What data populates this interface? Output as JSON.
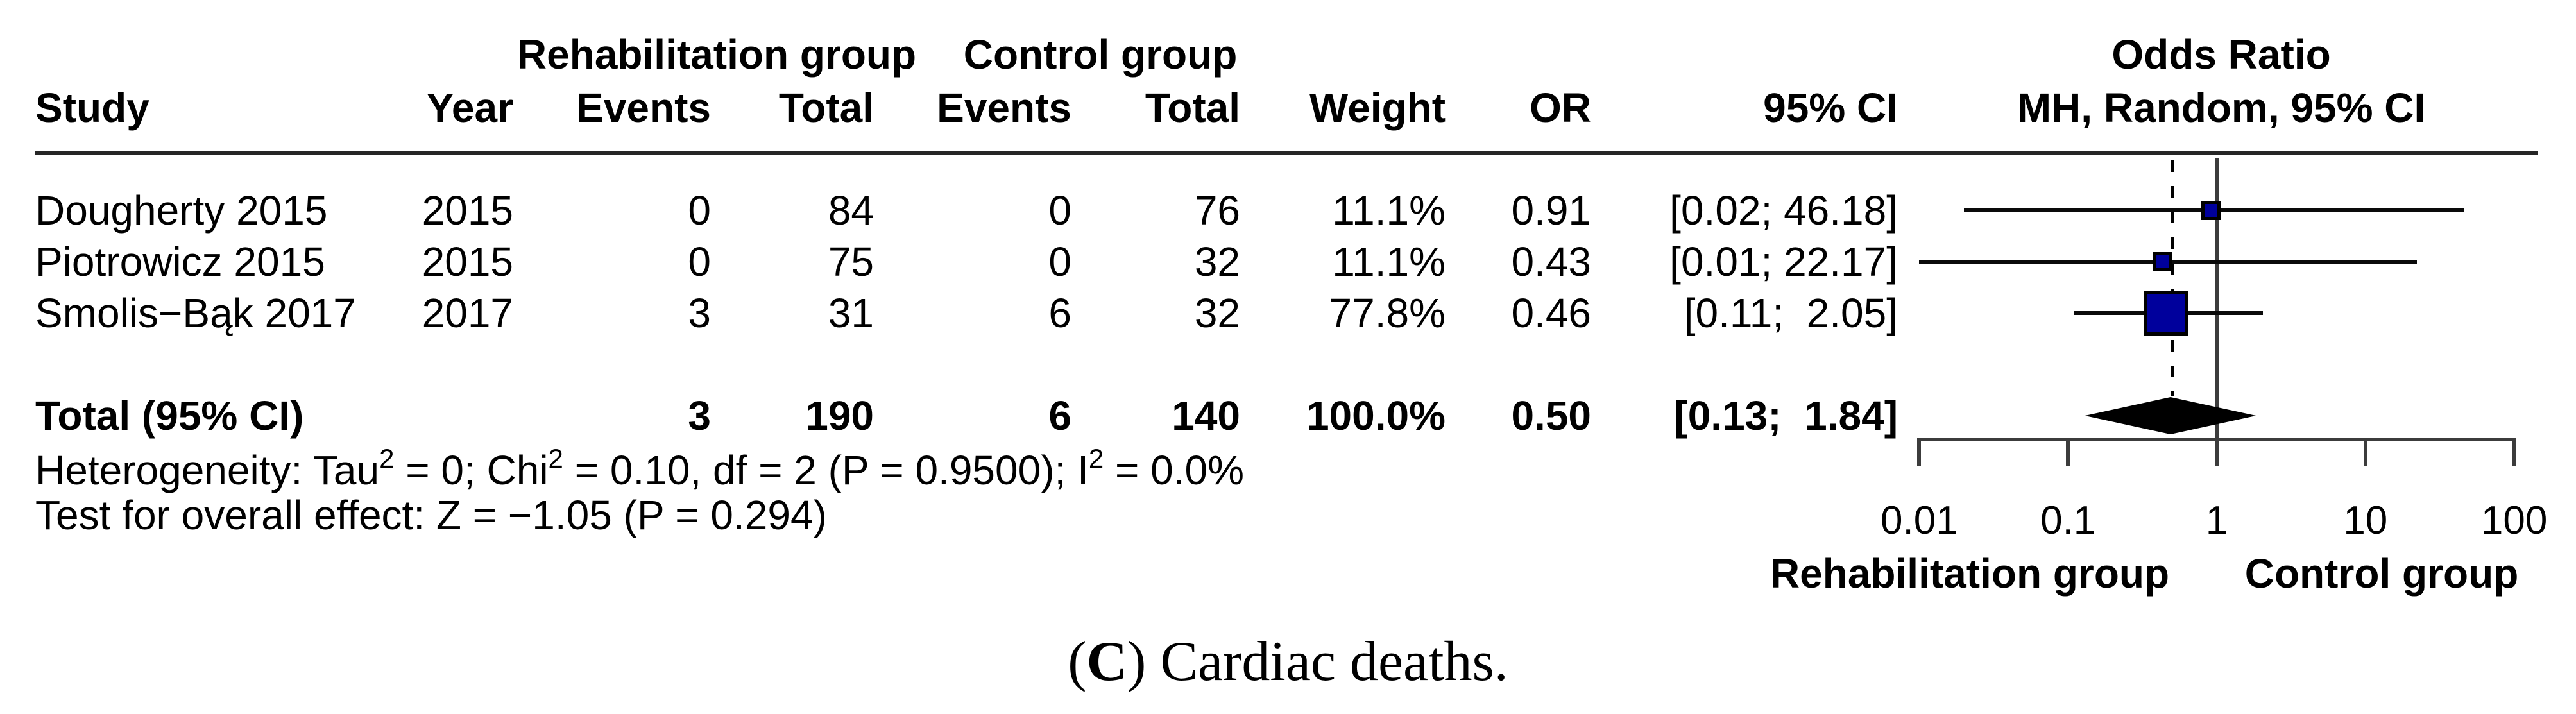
{
  "chart_data": {
    "type": "forest",
    "title": "Odds Ratio",
    "effect_model_label": "MH, Random, 95% CI",
    "x_scale": "log10",
    "x_ticks": [
      "0.01",
      "0.1",
      "1",
      "10",
      "100"
    ],
    "xlim": [
      0.01,
      100
    ],
    "ref_value": 1,
    "pooled_value": 0.5,
    "legend_position": "none",
    "grid": false,
    "group_headers": {
      "rehab": "Rehabilitation group",
      "control": "Control group"
    },
    "columns": {
      "study": "Study",
      "year": "Year",
      "events": "Events",
      "total": "Total",
      "weight": "Weight",
      "or": "OR",
      "ci": "95% CI"
    },
    "studies": [
      {
        "study": "Dougherty 2015",
        "year": "2015",
        "rehab_events": "0",
        "rehab_total": "84",
        "control_events": "0",
        "control_total": "76",
        "weight": "11.1%",
        "weight_value": 0.111,
        "or": 0.91,
        "or_label": "0.91",
        "ci_low": 0.02,
        "ci_high": 46.18,
        "ci_label": "[0.02; 46.18]"
      },
      {
        "study": "Piotrowicz 2015",
        "year": "2015",
        "rehab_events": "0",
        "rehab_total": "75",
        "control_events": "0",
        "control_total": "32",
        "weight": "11.1%",
        "weight_value": 0.111,
        "or": 0.43,
        "or_label": "0.43",
        "ci_low": 0.01,
        "ci_high": 22.17,
        "ci_label": "[0.01; 22.17]"
      },
      {
        "study": "Smolis−Bąk 2017",
        "year": "2017",
        "rehab_events": "3",
        "rehab_total": "31",
        "control_events": "6",
        "control_total": "32",
        "weight": "77.8%",
        "weight_value": 0.778,
        "or": 0.46,
        "or_label": "0.46",
        "ci_low": 0.11,
        "ci_high": 2.05,
        "ci_label": "[0.11;  2.05]"
      }
    ],
    "total": {
      "label": "Total (95% CI)",
      "rehab_events": "3",
      "rehab_total": "190",
      "control_events": "6",
      "control_total": "140",
      "weight": "100.0%",
      "or": 0.5,
      "or_label": "0.50",
      "ci_low": 0.13,
      "ci_high": 1.84,
      "ci_label": "[0.13;  1.84]"
    },
    "heterogeneity_parts": [
      {
        "text": "Heterogeneity: Tau"
      },
      {
        "sup": "2"
      },
      {
        "text": " = 0; Chi"
      },
      {
        "sup": "2"
      },
      {
        "text": " = 0.10, df = 2 (P = 0.9500); I"
      },
      {
        "sup": "2"
      },
      {
        "text": " = 0.0%"
      }
    ],
    "overall_effect": "Test for overall effect: Z = −1.05 (P = 0.294)",
    "x_axis_left_label": "Rehabilitation group",
    "x_axis_right_label": "Control group",
    "colors": {
      "square_fill": "#00009c",
      "square_border": "#000000",
      "diamond": "#000000",
      "ci_line": "#0a0a0a",
      "axis": "#3c3c3c"
    }
  },
  "caption": {
    "open": "(",
    "letter": "C",
    "rest": ") Cardiac deaths."
  }
}
